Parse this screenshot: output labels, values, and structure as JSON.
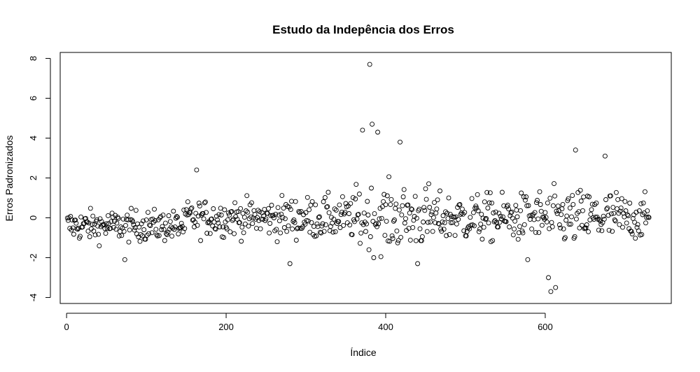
{
  "chart_data": {
    "type": "scatter",
    "title": "Estudo da Indepência dos Erros",
    "xlabel": "Índice",
    "ylabel": "Erros Padronizados",
    "xlim": [
      -8,
      758
    ],
    "ylim": [
      -4.3,
      8.3
    ],
    "xticks": [
      0,
      200,
      400,
      600
    ],
    "xtick_labels": [
      "0",
      "200",
      "400",
      "600"
    ],
    "yticks": [
      -4,
      -2,
      0,
      2,
      4,
      6,
      8
    ],
    "ytick_labels": [
      "-4",
      "-2",
      "0",
      "2",
      "4",
      "6",
      "8"
    ],
    "grid": false,
    "n_points": 730,
    "marker": "open-circle",
    "colors": {
      "point": "#000000",
      "axis": "#000000",
      "background": "#ffffff"
    },
    "notable_points": [
      {
        "x": 380,
        "y": 7.7
      },
      {
        "x": 371,
        "y": 4.4
      },
      {
        "x": 383,
        "y": 4.7
      },
      {
        "x": 390,
        "y": 4.3
      },
      {
        "x": 418,
        "y": 3.8
      },
      {
        "x": 638,
        "y": 3.4
      },
      {
        "x": 675,
        "y": 3.1
      },
      {
        "x": 163,
        "y": 2.4
      },
      {
        "x": 607,
        "y": -3.7
      },
      {
        "x": 613,
        "y": -3.5
      },
      {
        "x": 604,
        "y": -3.0
      },
      {
        "x": 280,
        "y": -2.3
      },
      {
        "x": 440,
        "y": -2.3
      },
      {
        "x": 73,
        "y": -2.1
      },
      {
        "x": 578,
        "y": -2.1
      }
    ]
  }
}
